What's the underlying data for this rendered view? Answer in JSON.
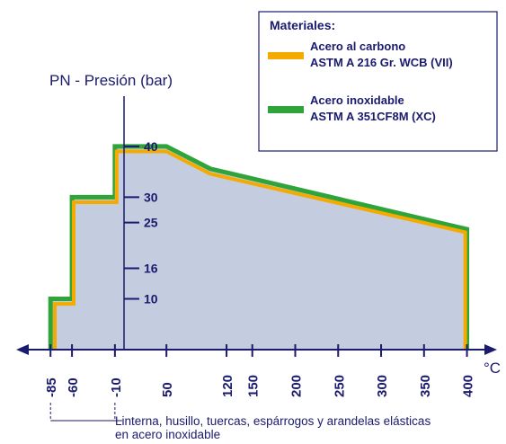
{
  "chart_data": {
    "type": "area",
    "ylabel": "PN - Presión (bar)",
    "xlabel": "°C",
    "xlim": [
      -125,
      435
    ],
    "ylim": [
      0,
      49
    ],
    "xticks": [
      -85,
      -60,
      -10,
      50,
      120,
      150,
      200,
      250,
      300,
      350,
      400
    ],
    "yticks": [
      10,
      16,
      25,
      30,
      40
    ],
    "fill_color": "#c4ccdf",
    "legend": {
      "title": "Materiales:",
      "position": "upper right"
    },
    "series": [
      {
        "name": [
          "Acero inoxidable",
          "ASTM A 351CF8M (XC)"
        ],
        "color": "#2ea43b",
        "x": [
          -85,
          -85,
          -60,
          -60,
          -10,
          -10,
          50,
          101,
          400,
          400
        ],
        "values": [
          0,
          10,
          10,
          30,
          30,
          40,
          40,
          35.6,
          23.7,
          0
        ]
      },
      {
        "name": [
          "Acero al carbono",
          "ASTM A 216 Gr. WCB (VII)"
        ],
        "color": "#f5aa00",
        "x": [
          -80,
          -80,
          -58,
          -58,
          -8,
          -8,
          50,
          101,
          398,
          398
        ],
        "values": [
          0,
          9,
          9,
          29,
          29,
          39,
          39,
          34.6,
          23.1,
          0
        ]
      }
    ],
    "annotation": [
      "Linterna, husillo, tuercas, espárrogos y arandelas elásticas",
      "en acero inoxidable"
    ],
    "annotation_range": [
      -85,
      -10
    ]
  }
}
